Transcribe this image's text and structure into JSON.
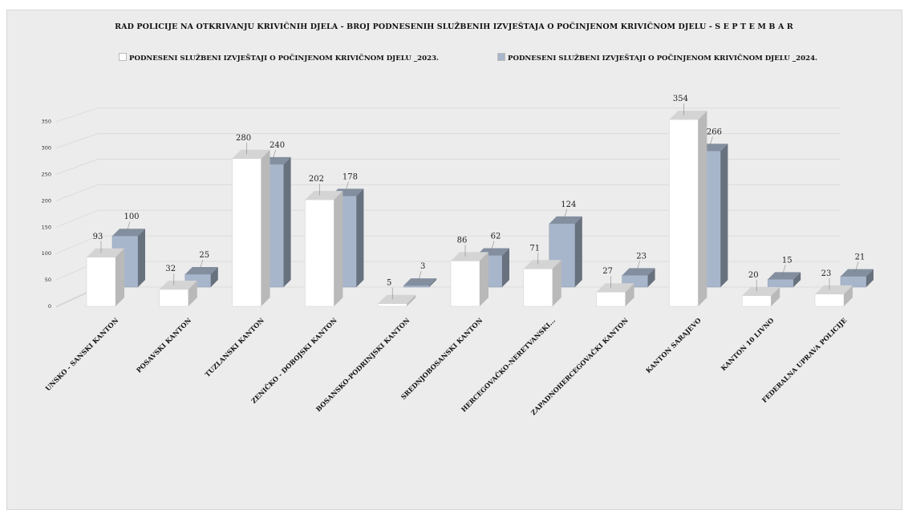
{
  "top_text": "",
  "chart_data": {
    "type": "bar",
    "title": "RAD POLICIJE NA OTKRIVANJU KRIVIČNIH DJELA  -  BROJ PODNESENIH SLUŽBENIH IZVJEŠTAJA O POČINJENOM KRIVIČNOM DJELU - S E P T E M B A R",
    "categories": [
      "UNSKO - SANSKI KANTON",
      "POSAVSKI KANTON",
      "TUZLANSKI KANTON",
      "ZENIČKO - DOBOJSKI KANTON",
      "BOSANSKO-PODRINJSKI KANTON",
      "SREDNJOBOSANSKI KANTON",
      "HERCEGOVAČKO-NERETVANSKI...",
      "ZAPADNOHERCEGOVAČKI KANTON",
      "KANTON SARAJEVO",
      "KANTON 10 LIVNO",
      "FEDERALNA UPRAVA POLICIJE"
    ],
    "series": [
      {
        "name": "PODNESENI SLUŽBENI IZVJEŠTAJI O POČINJENOM KRIVIČNOM DJELU _2023.",
        "color": "#ffffff",
        "values": [
          93,
          32,
          280,
          202,
          5,
          86,
          71,
          27,
          354,
          20,
          23
        ]
      },
      {
        "name": "PODNESENI SLUŽBENI IZVJEŠTAJI O POČINJENOM KRIVIČNOM DJELU _2024.",
        "color": "#a8b6cc",
        "values": [
          100,
          25,
          240,
          178,
          3,
          62,
          124,
          23,
          266,
          15,
          21
        ]
      }
    ],
    "yticks": [
      0,
      50,
      100,
      150,
      200,
      250,
      300,
      350
    ],
    "ylim": [
      0,
      350
    ],
    "grid": true,
    "legend_position": "top",
    "style": "3d-clustered-column"
  }
}
